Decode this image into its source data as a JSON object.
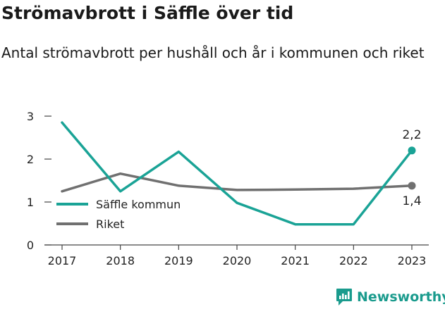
{
  "title": "Strömavbrott i Säffle över tid",
  "subtitle": "Antal strömavbrott per hushåll och år i kommunen och riket",
  "brand": "Newsworthy",
  "colors": {
    "saffle": "#1aa396",
    "riket": "#707070",
    "axis": "#444444",
    "brand": "#1a9b8d"
  },
  "chart_data": {
    "type": "line",
    "title": "Strömavbrott i Säffle över tid",
    "subtitle": "Antal strömavbrott per hushåll och år i kommunen och riket",
    "xlabel": "",
    "ylabel": "",
    "x": [
      "2017",
      "2018",
      "2019",
      "2020",
      "2021",
      "2022",
      "2023"
    ],
    "ylim": [
      0,
      3
    ],
    "yticks": [
      "0",
      "1",
      "2",
      "3"
    ],
    "grid": false,
    "legend_position": "left",
    "series": [
      {
        "name": "Säffle kommun",
        "color": "#1aa396",
        "values": [
          2.85,
          1.25,
          2.17,
          0.98,
          0.48,
          0.48,
          2.2
        ],
        "end_label": "2,2"
      },
      {
        "name": "Riket",
        "color": "#707070",
        "values": [
          1.25,
          1.66,
          1.38,
          1.28,
          1.29,
          1.31,
          1.38
        ],
        "end_label": "1,4"
      }
    ]
  }
}
